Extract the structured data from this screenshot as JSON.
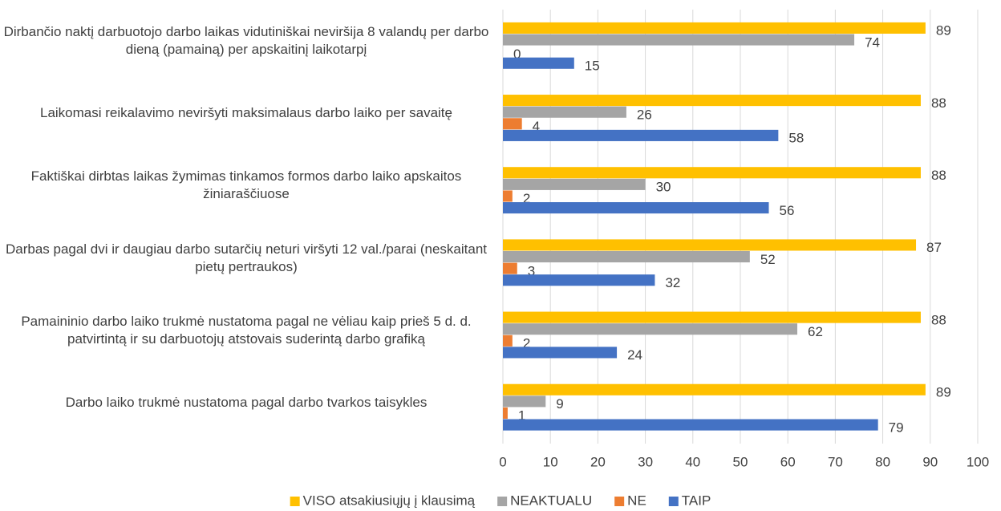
{
  "chart_data": {
    "type": "bar",
    "orientation": "horizontal",
    "categories": [
      "Dirbančio naktį darbuotojo darbo laikas vidutiniškai neviršija 8 valandų per darbo dieną (pamainą) per apskaitinį laikotarpį",
      "Laikomasi reikalavimo neviršyti maksimalaus darbo laiko per savaitę",
      "Faktiškai dirbtas laikas žymimas tinkamos formos darbo laiko apskaitos žiniaraščiuose",
      "Darbas pagal dvi ir daugiau darbo sutarčių neturi viršyti 12 val./parai (neskaitant pietų pertraukos)",
      "Pamaininio darbo laiko trukmė nustatoma pagal ne vėliau kaip prieš 5 d. d. patvirtintą ir su darbuotojų atstovais suderintą darbo grafiką",
      "Darbo laiko trukmė nustatoma pagal darbo tvarkos taisykles"
    ],
    "series": [
      {
        "name": "VISO atsakiusiųjų į klausimą",
        "color": "#ffc000",
        "values": [
          89,
          88,
          88,
          87,
          88,
          89
        ]
      },
      {
        "name": "NEAKTUALU",
        "color": "#a5a5a5",
        "values": [
          74,
          26,
          30,
          52,
          62,
          9
        ]
      },
      {
        "name": "NE",
        "color": "#ed7d31",
        "values": [
          0,
          4,
          2,
          3,
          2,
          1
        ]
      },
      {
        "name": "TAIP",
        "color": "#4472c4",
        "values": [
          15,
          58,
          56,
          32,
          24,
          79
        ]
      }
    ],
    "xlim": [
      0,
      100
    ],
    "xticks": [
      0,
      10,
      20,
      30,
      40,
      50,
      60,
      70,
      80,
      90,
      100
    ],
    "grid": true,
    "legend": "bottom"
  }
}
